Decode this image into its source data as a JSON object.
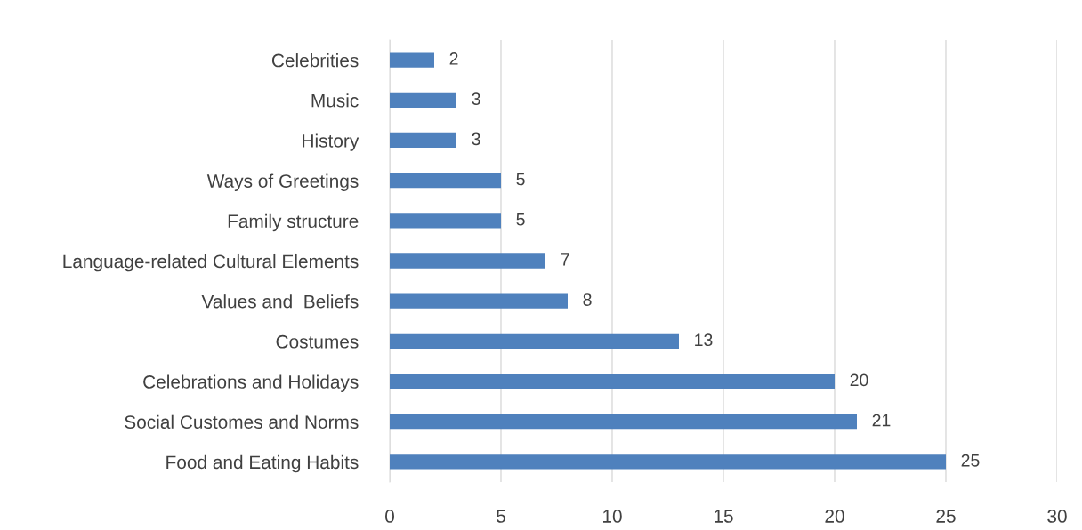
{
  "chart_data": {
    "type": "bar",
    "orientation": "horizontal",
    "categories": [
      "Celebrities",
      "Music",
      "History",
      "Ways of Greetings",
      "Family structure",
      "Language-related Cultural Elements",
      "Values and  Beliefs",
      "Costumes",
      "Celebrations and Holidays",
      "Social Customes and Norms",
      "Food and Eating Habits"
    ],
    "values": [
      2,
      3,
      3,
      5,
      5,
      7,
      8,
      13,
      20,
      21,
      25
    ],
    "color": "#4f81bd",
    "xlim": [
      0,
      30
    ],
    "xticks": [
      0,
      5,
      10,
      15,
      20,
      25,
      30
    ],
    "grid": "x",
    "data_labels": true
  }
}
